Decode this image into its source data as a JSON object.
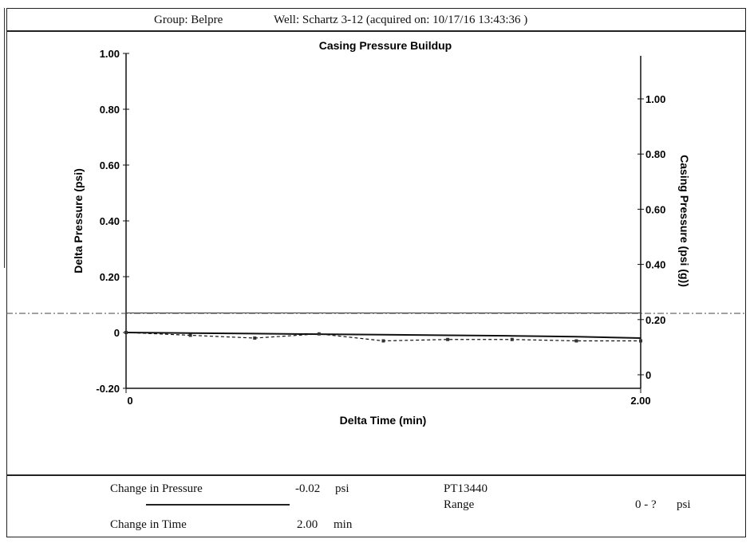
{
  "header": {
    "group": "Group: Belpre",
    "well": "Well: Schartz 3-12 (acquired on: 10/17/16 13:43:36 )"
  },
  "chart_data": {
    "type": "line",
    "title": "Casing Pressure Buildup",
    "xlabel": "Delta Time (min)",
    "ylabel": "Delta Pressure (psi)",
    "y2label": "Casing Pressure (psi (g))",
    "xlim": [
      0,
      2.0
    ],
    "ylim": [
      -0.2,
      1.0
    ],
    "y2lim": [
      0,
      1.1
    ],
    "x_ticks": [
      "0",
      "2.00"
    ],
    "y_ticks": [
      {
        "v": 1.0,
        "label": "1.00"
      },
      {
        "v": 0.8,
        "label": "0.80"
      },
      {
        "v": 0.6,
        "label": "0.60"
      },
      {
        "v": 0.4,
        "label": "0.40"
      },
      {
        "v": 0.2,
        "label": "0.20"
      },
      {
        "v": 0.0,
        "label": "0"
      },
      {
        "v": -0.2,
        "label": "-0.20"
      }
    ],
    "y2_ticks": [
      {
        "v": 1.0,
        "label": "1.00"
      },
      {
        "v": 0.8,
        "label": "0.80"
      },
      {
        "v": 0.6,
        "label": "0.60"
      },
      {
        "v": 0.4,
        "label": "0.40"
      },
      {
        "v": 0.2,
        "label": "0.20"
      },
      {
        "v": 0.0,
        "label": "0"
      }
    ],
    "series": [
      {
        "axis": "left",
        "style": "solid",
        "x": [
          0,
          0.25,
          0.5,
          0.75,
          1.0,
          1.25,
          1.5,
          1.75,
          2.0
        ],
        "y": [
          0.0,
          -0.002,
          -0.004,
          -0.006,
          -0.008,
          -0.01,
          -0.012,
          -0.015,
          -0.02
        ]
      },
      {
        "axis": "left",
        "style": "dashed",
        "marker": "square",
        "x": [
          0,
          0.25,
          0.5,
          0.75,
          1.0,
          1.25,
          1.5,
          1.75,
          2.0
        ],
        "y": [
          0.0,
          -0.01,
          -0.02,
          -0.005,
          -0.03,
          -0.025,
          -0.025,
          -0.03,
          -0.03
        ]
      }
    ],
    "grid": false
  },
  "footer": {
    "pressure_label": "Change in Pressure",
    "pressure_value": "-0.02",
    "pressure_unit": "psi",
    "time_label": "Change in Time",
    "time_value": "2.00",
    "time_unit": "min",
    "sensor": "PT13440",
    "range_label": "Range",
    "range_value": "0 - ?",
    "range_unit": "psi"
  }
}
